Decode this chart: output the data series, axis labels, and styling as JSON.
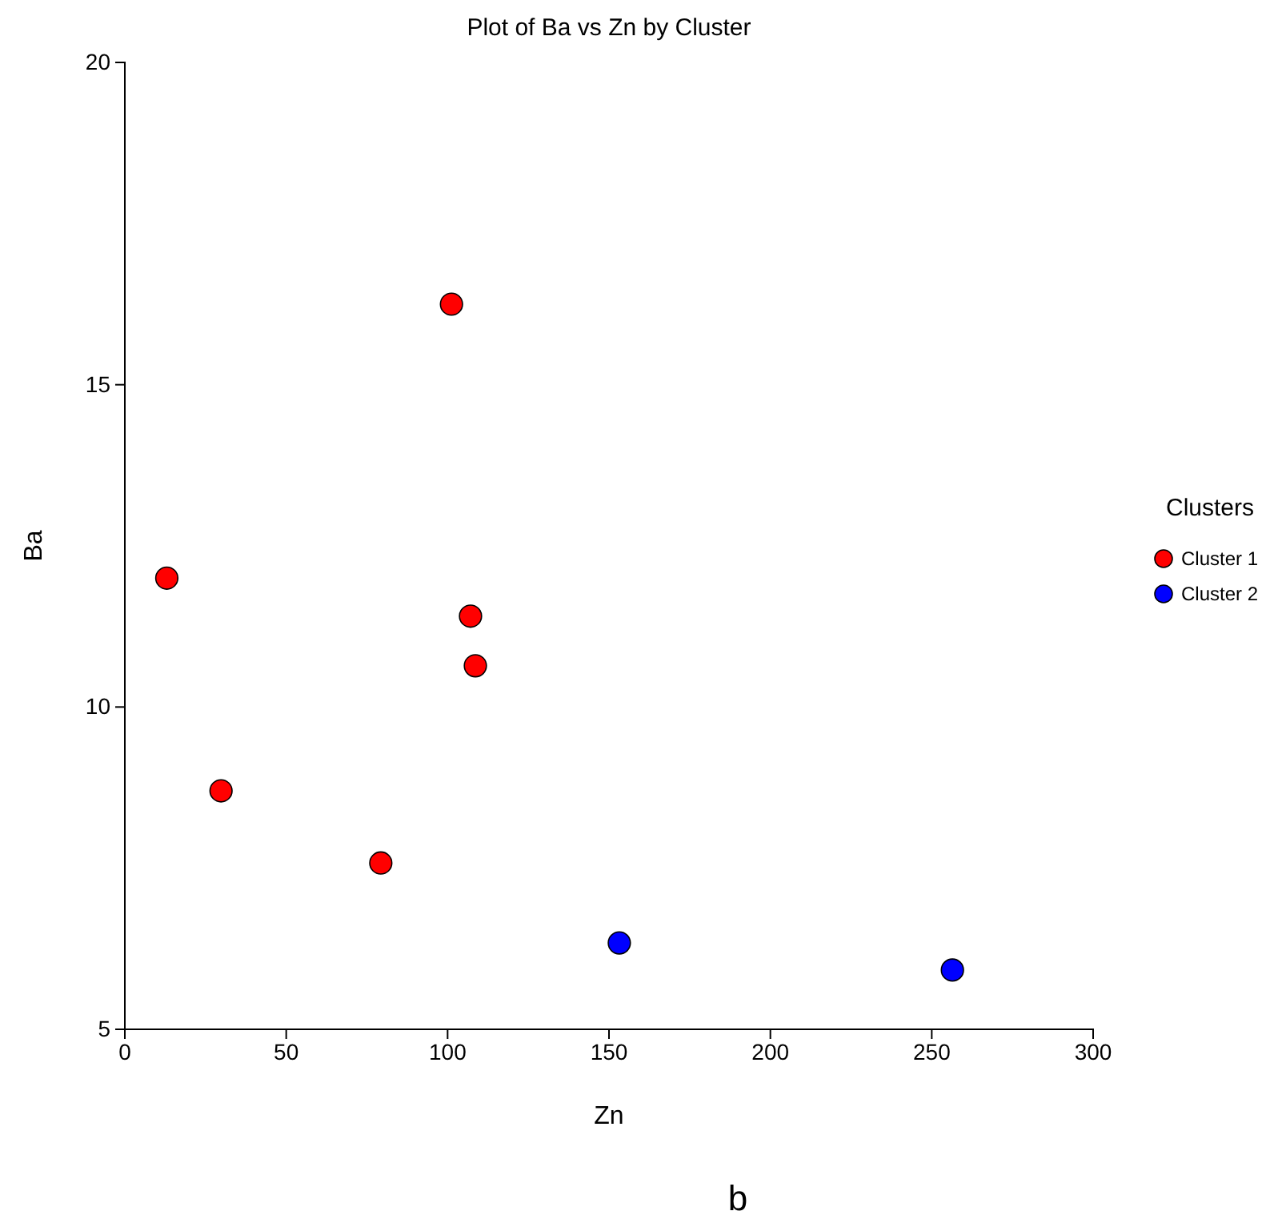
{
  "chart_data": {
    "type": "scatter",
    "title": "Plot of Ba vs Zn by Cluster",
    "xlabel": "Zn",
    "ylabel": "Ba",
    "legend_title": "Clusters",
    "legend": "right",
    "marker": "circle",
    "grid": false,
    "xlim": [
      0,
      300
    ],
    "xticks": [
      0,
      50,
      100,
      150,
      200,
      250,
      300
    ],
    "ylim": [
      5,
      20
    ],
    "yticks": [
      5,
      10,
      15,
      20
    ],
    "series": [
      {
        "name": "Cluster 1",
        "color": "#ff0000",
        "x": [
          13,
          29.8,
          79.3,
          101.2,
          107.1,
          108.6
        ],
        "values": [
          12.0,
          8.7,
          7.58,
          16.25,
          11.41,
          10.64
        ]
      },
      {
        "name": "Cluster 2",
        "color": "#0000ff",
        "x": [
          153.2,
          256.4
        ],
        "values": [
          6.34,
          5.92
        ]
      }
    ],
    "annotations": [
      "b"
    ]
  }
}
